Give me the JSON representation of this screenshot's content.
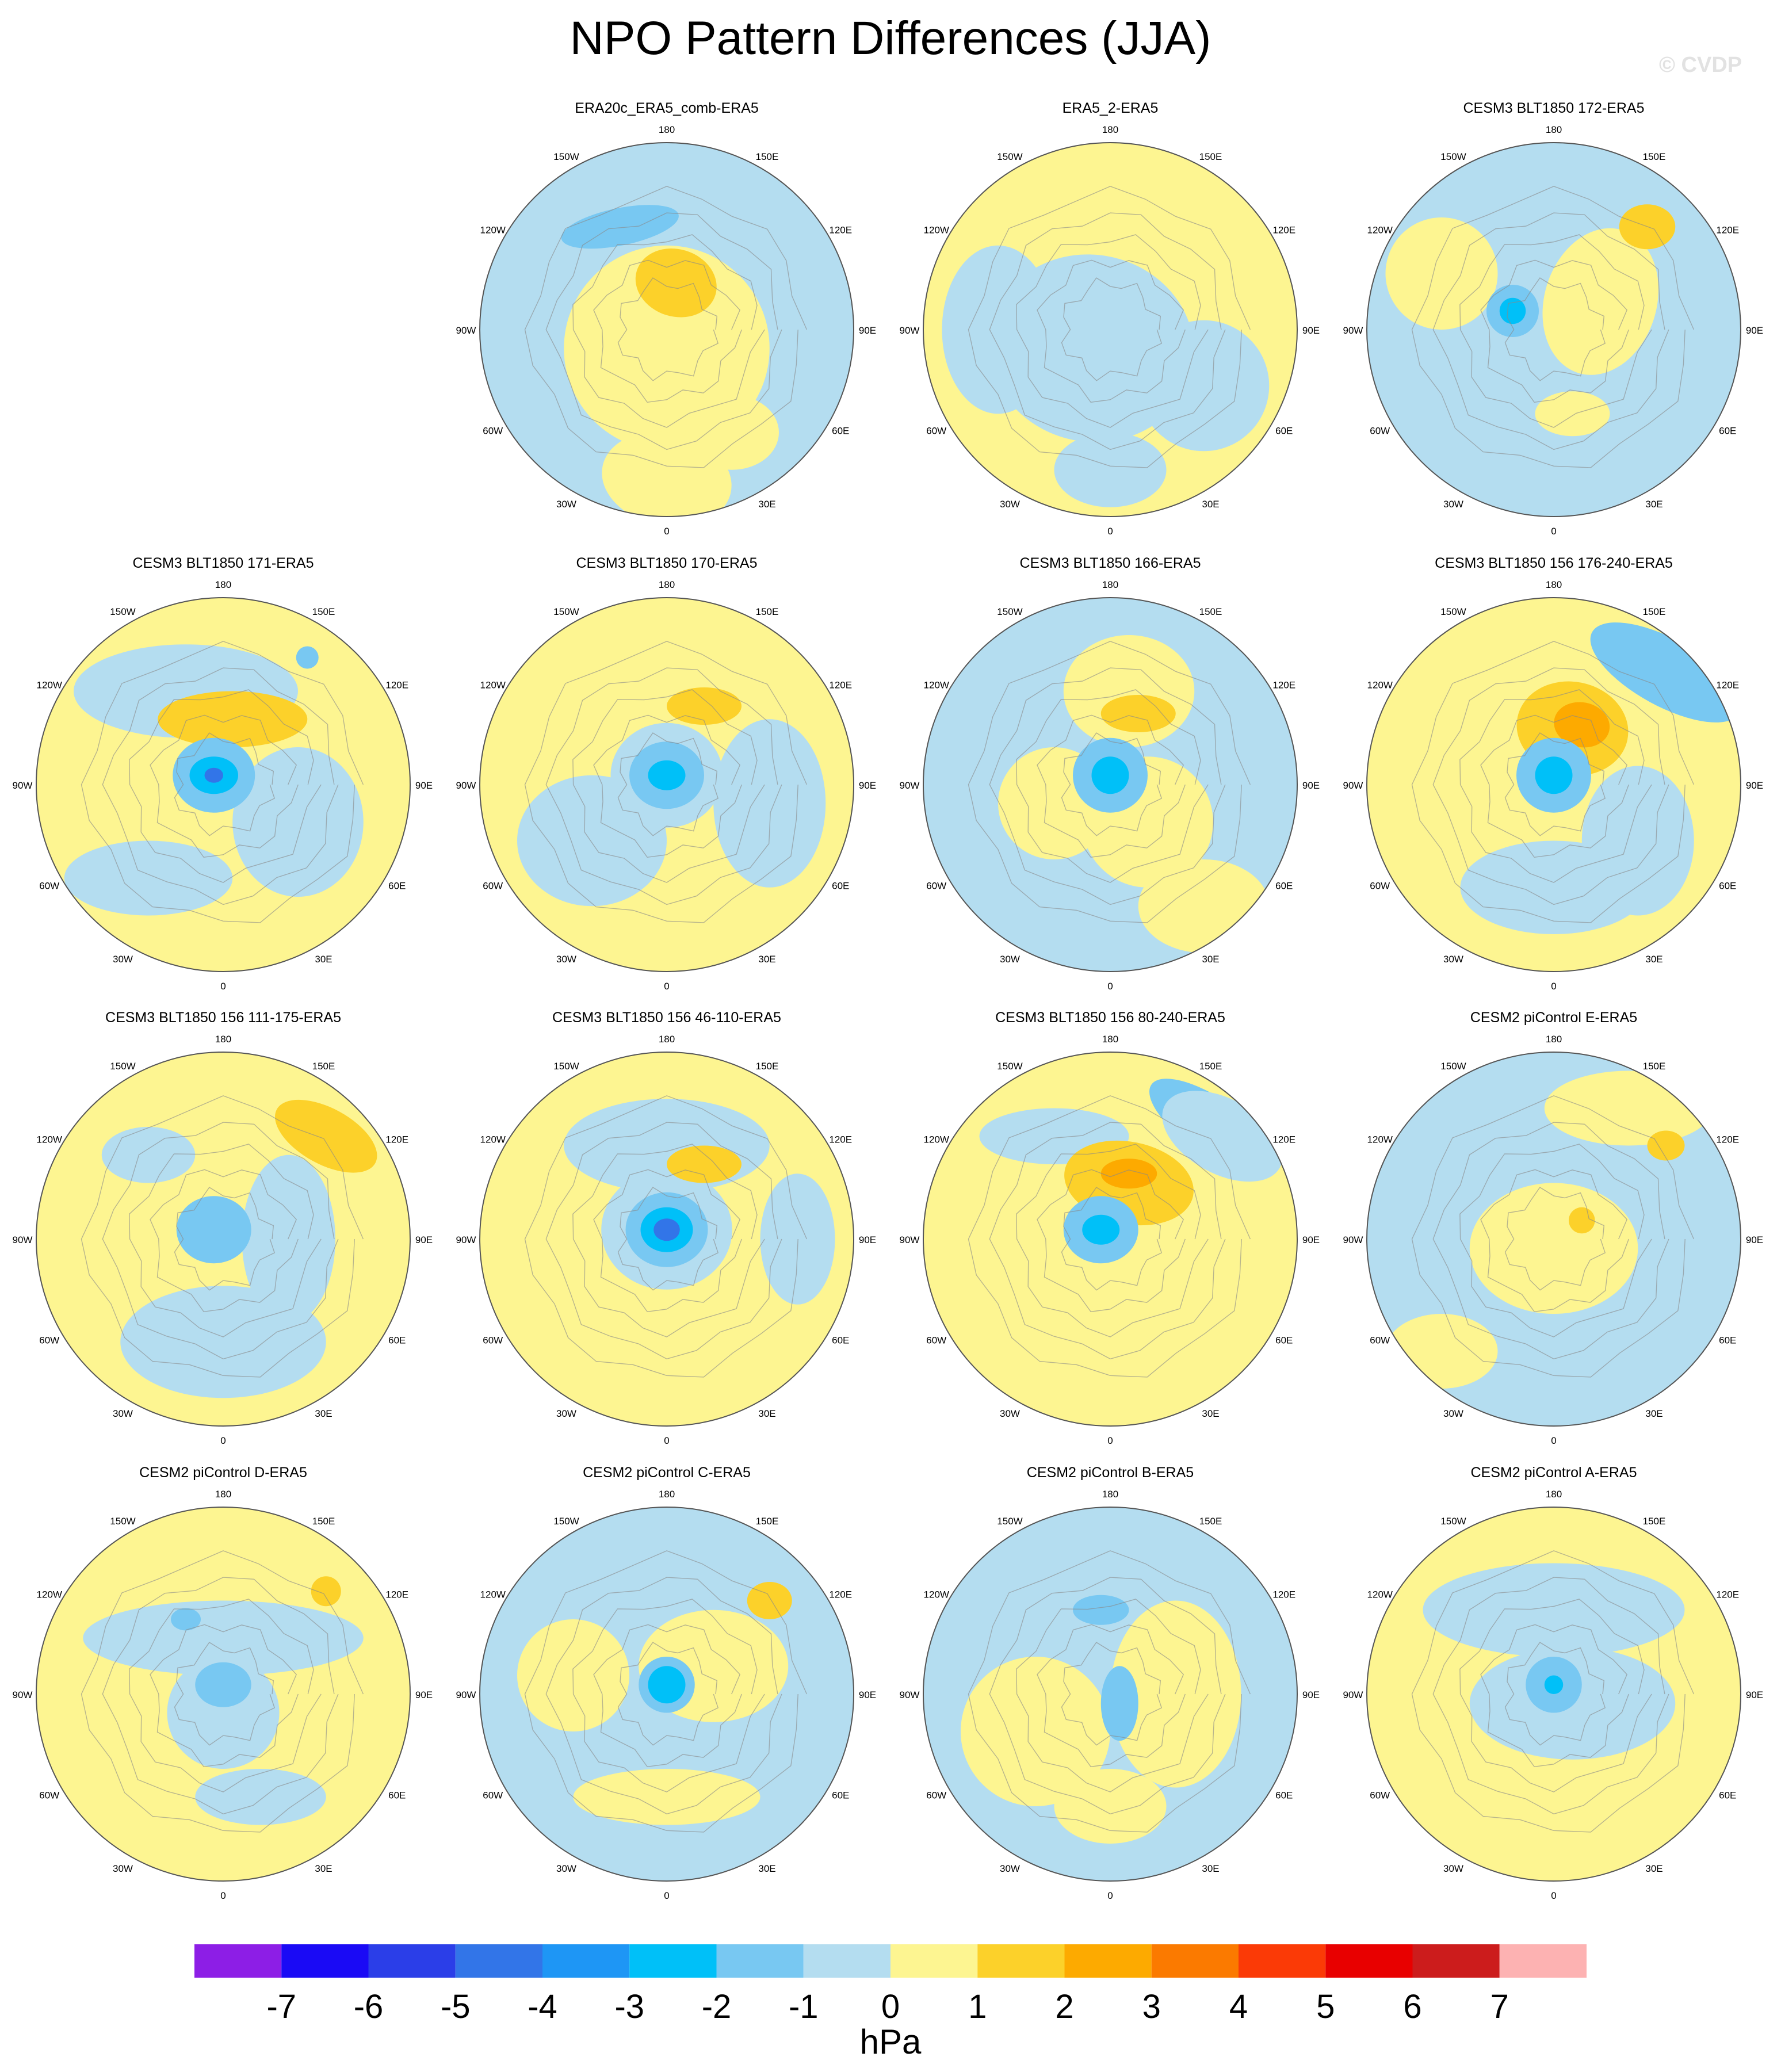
{
  "title": "NPO Pattern Differences (JJA)",
  "watermark": "© CVDP",
  "units": "hPa",
  "lon_labels": [
    "180",
    "150E",
    "120E",
    "90E",
    "60E",
    "30E",
    "0",
    "30W",
    "60W",
    "90W",
    "120W",
    "150W"
  ],
  "colorbar": {
    "colors": [
      "#8d1ee6",
      "#1a0af5",
      "#2b3ee8",
      "#3275e8",
      "#1e96f5",
      "#00c0f8",
      "#78c8f2",
      "#b4ddf0",
      "#fdf591",
      "#fcd12a",
      "#fdaa00",
      "#fb7a00",
      "#fb3a06",
      "#e80000",
      "#cc1c1c",
      "#fdb2b2"
    ],
    "labels": [
      "-7",
      "-6",
      "-5",
      "-4",
      "-3",
      "-2",
      "-1",
      "0",
      "1",
      "2",
      "3",
      "4",
      "5",
      "6",
      "7"
    ]
  },
  "panels": [
    {
      "title": "ERA20c_ERA5_comb-ERA5",
      "row": 0,
      "col": 1,
      "base": "blue",
      "blobs": [
        [
          0.0,
          0.1,
          0.55,
          0.55,
          -0.1,
          "yellow"
        ],
        [
          0.0,
          0.8,
          0.35,
          0.25,
          0.2,
          "yellow"
        ],
        [
          0.35,
          0.55,
          0.25,
          0.2,
          0,
          "yellow"
        ],
        [
          0.05,
          -0.25,
          0.22,
          0.18,
          0.3,
          "orange"
        ],
        [
          -0.25,
          -0.55,
          0.32,
          0.1,
          -0.2,
          "blue2"
        ]
      ]
    },
    {
      "title": "ERA5_2-ERA5",
      "row": 0,
      "col": 2,
      "base": "yellow",
      "blobs": [
        [
          -0.1,
          0.1,
          0.55,
          0.5,
          0.2,
          "blue"
        ],
        [
          -0.6,
          0.0,
          0.3,
          0.45,
          0,
          "blue"
        ],
        [
          0.5,
          0.3,
          0.35,
          0.35,
          0,
          "blue"
        ],
        [
          0.0,
          0.75,
          0.3,
          0.2,
          0,
          "blue"
        ]
      ]
    },
    {
      "title": "CESM3 BLT1850 172-ERA5",
      "row": 0,
      "col": 3,
      "base": "blue",
      "blobs": [
        [
          0.25,
          -0.15,
          0.3,
          0.4,
          0.3,
          "yellow"
        ],
        [
          -0.6,
          -0.3,
          0.3,
          0.3,
          0,
          "yellow"
        ],
        [
          0.5,
          -0.55,
          0.15,
          0.12,
          0,
          "orange"
        ],
        [
          -0.22,
          -0.1,
          0.14,
          0.14,
          0,
          "blue2"
        ],
        [
          -0.22,
          -0.1,
          0.07,
          0.07,
          0,
          "blue3"
        ],
        [
          0.1,
          0.45,
          0.2,
          0.12,
          0,
          "yellow"
        ]
      ]
    },
    {
      "title": "CESM3 BLT1850 171-ERA5",
      "row": 1,
      "col": 0,
      "base": "yellow",
      "blobs": [
        [
          -0.2,
          -0.5,
          0.6,
          0.25,
          0,
          "blue"
        ],
        [
          0.4,
          0.2,
          0.35,
          0.4,
          0,
          "blue"
        ],
        [
          -0.4,
          0.5,
          0.45,
          0.2,
          0,
          "blue"
        ],
        [
          0.05,
          -0.35,
          0.4,
          0.15,
          0,
          "orange"
        ],
        [
          -0.05,
          -0.05,
          0.22,
          0.2,
          0,
          "blue2"
        ],
        [
          -0.05,
          -0.05,
          0.13,
          0.1,
          0,
          "blue3"
        ],
        [
          -0.05,
          -0.05,
          0.05,
          0.04,
          0,
          "blue4"
        ],
        [
          0.45,
          -0.68,
          0.06,
          0.06,
          0,
          "blue2"
        ]
      ]
    },
    {
      "title": "CESM3 BLT1850 170-ERA5",
      "row": 1,
      "col": 1,
      "base": "yellow",
      "blobs": [
        [
          -0.4,
          0.3,
          0.4,
          0.35,
          0,
          "blue"
        ],
        [
          0.55,
          0.1,
          0.3,
          0.45,
          0,
          "blue"
        ],
        [
          0.0,
          -0.05,
          0.3,
          0.28,
          0,
          "blue"
        ],
        [
          0.0,
          -0.05,
          0.2,
          0.18,
          0,
          "blue2"
        ],
        [
          0.0,
          -0.05,
          0.1,
          0.08,
          0,
          "blue3"
        ],
        [
          0.2,
          -0.42,
          0.2,
          0.1,
          0,
          "orange"
        ]
      ]
    },
    {
      "title": "CESM3 BLT1850 166-ERA5",
      "row": 1,
      "col": 2,
      "base": "blue",
      "blobs": [
        [
          -0.3,
          0.1,
          0.3,
          0.3,
          0,
          "yellow"
        ],
        [
          0.2,
          0.2,
          0.35,
          0.35,
          0,
          "yellow"
        ],
        [
          0.1,
          -0.5,
          0.35,
          0.3,
          0,
          "yellow"
        ],
        [
          0.5,
          0.65,
          0.35,
          0.25,
          0,
          "yellow"
        ],
        [
          0.15,
          -0.38,
          0.2,
          0.1,
          0,
          "orange"
        ],
        [
          0.0,
          -0.05,
          0.2,
          0.2,
          0,
          "blue2"
        ],
        [
          0.0,
          -0.05,
          0.1,
          0.1,
          0,
          "blue3"
        ]
      ]
    },
    {
      "title": "CESM3 BLT1850 156 176-240-ERA5",
      "row": 1,
      "col": 3,
      "base": "yellow",
      "blobs": [
        [
          0.6,
          -0.6,
          0.45,
          0.18,
          0.5,
          "blue2"
        ],
        [
          0.45,
          0.3,
          0.3,
          0.4,
          0,
          "blue"
        ],
        [
          0.0,
          0.55,
          0.5,
          0.25,
          0,
          "blue"
        ],
        [
          0.1,
          -0.3,
          0.3,
          0.25,
          0.2,
          "orange"
        ],
        [
          0.15,
          -0.32,
          0.15,
          0.12,
          0.2,
          "orange2"
        ],
        [
          0.0,
          -0.05,
          0.2,
          0.2,
          0,
          "blue2"
        ],
        [
          0.0,
          -0.05,
          0.1,
          0.1,
          0,
          "blue3"
        ]
      ]
    },
    {
      "title": "CESM3 BLT1850 156 111-175-ERA5",
      "row": 2,
      "col": 0,
      "base": "yellow",
      "blobs": [
        [
          0.0,
          0.55,
          0.55,
          0.3,
          0,
          "blue"
        ],
        [
          0.35,
          0.0,
          0.25,
          0.45,
          0,
          "blue"
        ],
        [
          -0.4,
          -0.45,
          0.25,
          0.15,
          0,
          "blue"
        ],
        [
          0.55,
          -0.55,
          0.3,
          0.15,
          0.5,
          "orange"
        ],
        [
          -0.05,
          -0.05,
          0.2,
          0.18,
          0,
          "blue2"
        ]
      ]
    },
    {
      "title": "CESM3 BLT1850 156 46-110-ERA5",
      "row": 2,
      "col": 1,
      "base": "yellow",
      "blobs": [
        [
          0.0,
          -0.5,
          0.55,
          0.25,
          0,
          "blue"
        ],
        [
          0.7,
          0.0,
          0.2,
          0.35,
          0,
          "blue"
        ],
        [
          0.0,
          -0.05,
          0.35,
          0.32,
          0,
          "blue"
        ],
        [
          0.0,
          -0.05,
          0.22,
          0.2,
          0,
          "blue2"
        ],
        [
          0.0,
          -0.05,
          0.14,
          0.12,
          0,
          "blue3"
        ],
        [
          0.0,
          -0.05,
          0.07,
          0.06,
          0,
          "blue4"
        ],
        [
          0.2,
          -0.4,
          0.2,
          0.1,
          0,
          "orange"
        ]
      ]
    },
    {
      "title": "CESM3 BLT1850 156 80-240-ERA5",
      "row": 2,
      "col": 2,
      "base": "yellow",
      "blobs": [
        [
          0.55,
          -0.6,
          0.4,
          0.15,
          0.6,
          "blue2"
        ],
        [
          0.6,
          -0.55,
          0.35,
          0.2,
          0.5,
          "blue"
        ],
        [
          -0.3,
          -0.55,
          0.4,
          0.15,
          0,
          "blue"
        ],
        [
          0.1,
          -0.3,
          0.35,
          0.22,
          0.2,
          "orange"
        ],
        [
          0.1,
          -0.35,
          0.15,
          0.08,
          0,
          "orange2"
        ],
        [
          -0.05,
          -0.05,
          0.2,
          0.18,
          0,
          "blue2"
        ],
        [
          -0.05,
          -0.05,
          0.1,
          0.08,
          0,
          "blue3"
        ]
      ]
    },
    {
      "title": "CESM2 piControl E-ERA5",
      "row": 2,
      "col": 3,
      "base": "blue",
      "blobs": [
        [
          0.0,
          0.05,
          0.45,
          0.35,
          0,
          "yellow"
        ],
        [
          0.4,
          -0.7,
          0.45,
          0.2,
          0,
          "yellow"
        ],
        [
          -0.6,
          0.6,
          0.3,
          0.2,
          0,
          "yellow"
        ],
        [
          0.6,
          -0.5,
          0.1,
          0.08,
          0,
          "orange"
        ],
        [
          0.15,
          -0.1,
          0.07,
          0.07,
          0,
          "orange"
        ]
      ]
    },
    {
      "title": "CESM2 piControl D-ERA5",
      "row": 3,
      "col": 0,
      "base": "yellow",
      "blobs": [
        [
          0.0,
          -0.3,
          0.75,
          0.2,
          0,
          "blue"
        ],
        [
          0.0,
          0.1,
          0.3,
          0.3,
          0,
          "blue"
        ],
        [
          0.2,
          0.55,
          0.35,
          0.15,
          0,
          "blue"
        ],
        [
          0.0,
          -0.05,
          0.15,
          0.12,
          0,
          "blue2"
        ],
        [
          0.55,
          -0.55,
          0.08,
          0.08,
          0,
          "orange"
        ],
        [
          -0.2,
          -0.4,
          0.08,
          0.06,
          0,
          "blue2"
        ]
      ]
    },
    {
      "title": "CESM2 piControl C-ERA5",
      "row": 3,
      "col": 1,
      "base": "blue",
      "blobs": [
        [
          0.25,
          -0.15,
          0.4,
          0.3,
          0,
          "yellow"
        ],
        [
          -0.5,
          -0.1,
          0.3,
          0.3,
          0,
          "yellow"
        ],
        [
          0.0,
          0.55,
          0.5,
          0.15,
          0,
          "yellow"
        ],
        [
          0.55,
          -0.5,
          0.12,
          0.1,
          0,
          "orange"
        ],
        [
          0.0,
          -0.05,
          0.15,
          0.15,
          0,
          "blue2"
        ],
        [
          0.0,
          -0.05,
          0.1,
          0.1,
          0,
          "blue3"
        ]
      ]
    },
    {
      "title": "CESM2 piControl B-ERA5",
      "row": 3,
      "col": 2,
      "base": "blue",
      "blobs": [
        [
          -0.4,
          0.2,
          0.4,
          0.4,
          0,
          "yellow"
        ],
        [
          0.35,
          0.0,
          0.35,
          0.5,
          0,
          "yellow"
        ],
        [
          0.0,
          0.6,
          0.3,
          0.2,
          0,
          "yellow"
        ],
        [
          -0.05,
          -0.45,
          0.15,
          0.08,
          0,
          "blue2"
        ],
        [
          0.05,
          0.05,
          0.1,
          0.2,
          0,
          "blue2"
        ]
      ]
    },
    {
      "title": "CESM2 piControl A-ERA5",
      "row": 3,
      "col": 3,
      "base": "yellow",
      "blobs": [
        [
          0.0,
          -0.45,
          0.7,
          0.25,
          0,
          "blue"
        ],
        [
          0.1,
          0.05,
          0.55,
          0.3,
          0,
          "blue"
        ],
        [
          0.0,
          -0.05,
          0.15,
          0.15,
          0,
          "blue2"
        ],
        [
          0.0,
          -0.05,
          0.05,
          0.05,
          0,
          "blue3"
        ]
      ]
    }
  ]
}
